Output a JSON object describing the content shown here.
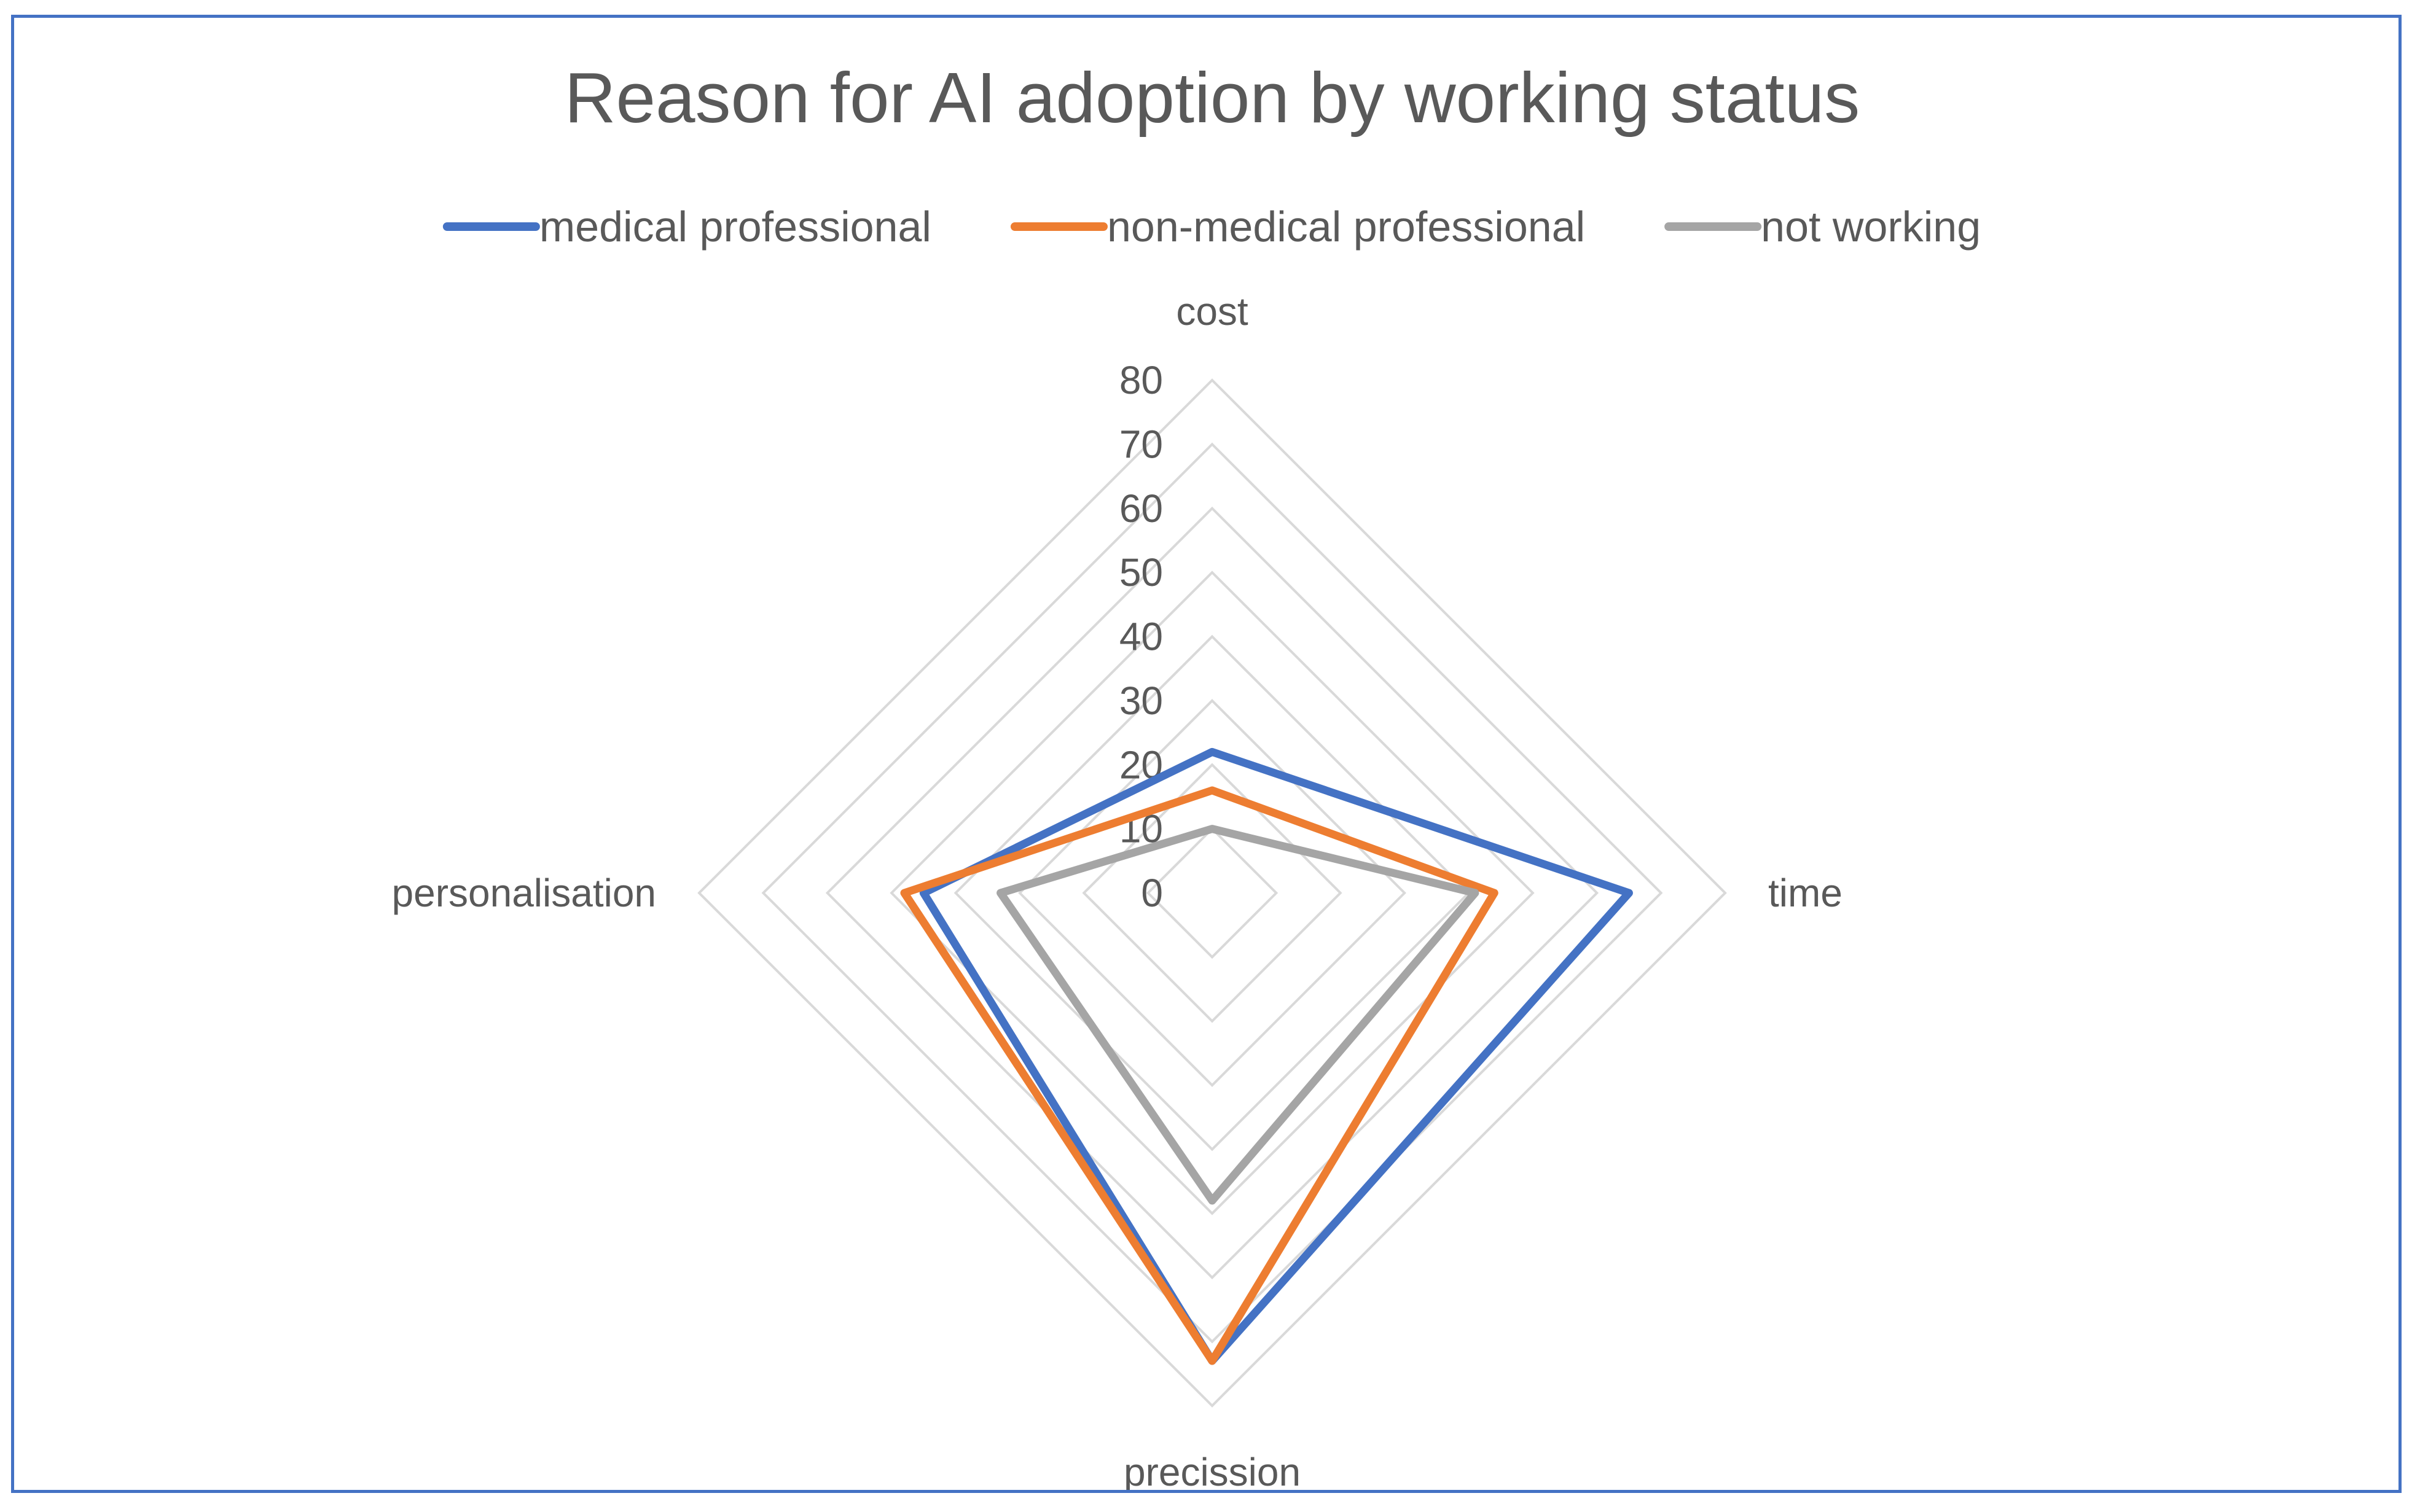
{
  "chart_data": {
    "type": "radar",
    "title": "Reason for AI adoption by working status",
    "axes": [
      "cost",
      "time",
      "precission",
      "personalisation"
    ],
    "scale": {
      "min": 0,
      "max": 80,
      "step": 10,
      "tick_labels": [
        "0",
        "10",
        "20",
        "30",
        "40",
        "50",
        "60",
        "70",
        "80"
      ]
    },
    "grid": true,
    "legend_position": "top",
    "series": [
      {
        "name": "medical professional",
        "color": "#4472c4",
        "values": [
          22,
          65,
          73,
          45
        ]
      },
      {
        "name": "non-medical professional",
        "color": "#ed7d31",
        "values": [
          16,
          44,
          73,
          48
        ]
      },
      {
        "name": "not working",
        "color": "#a5a5a5",
        "values": [
          10,
          41,
          48,
          33
        ]
      }
    ]
  }
}
